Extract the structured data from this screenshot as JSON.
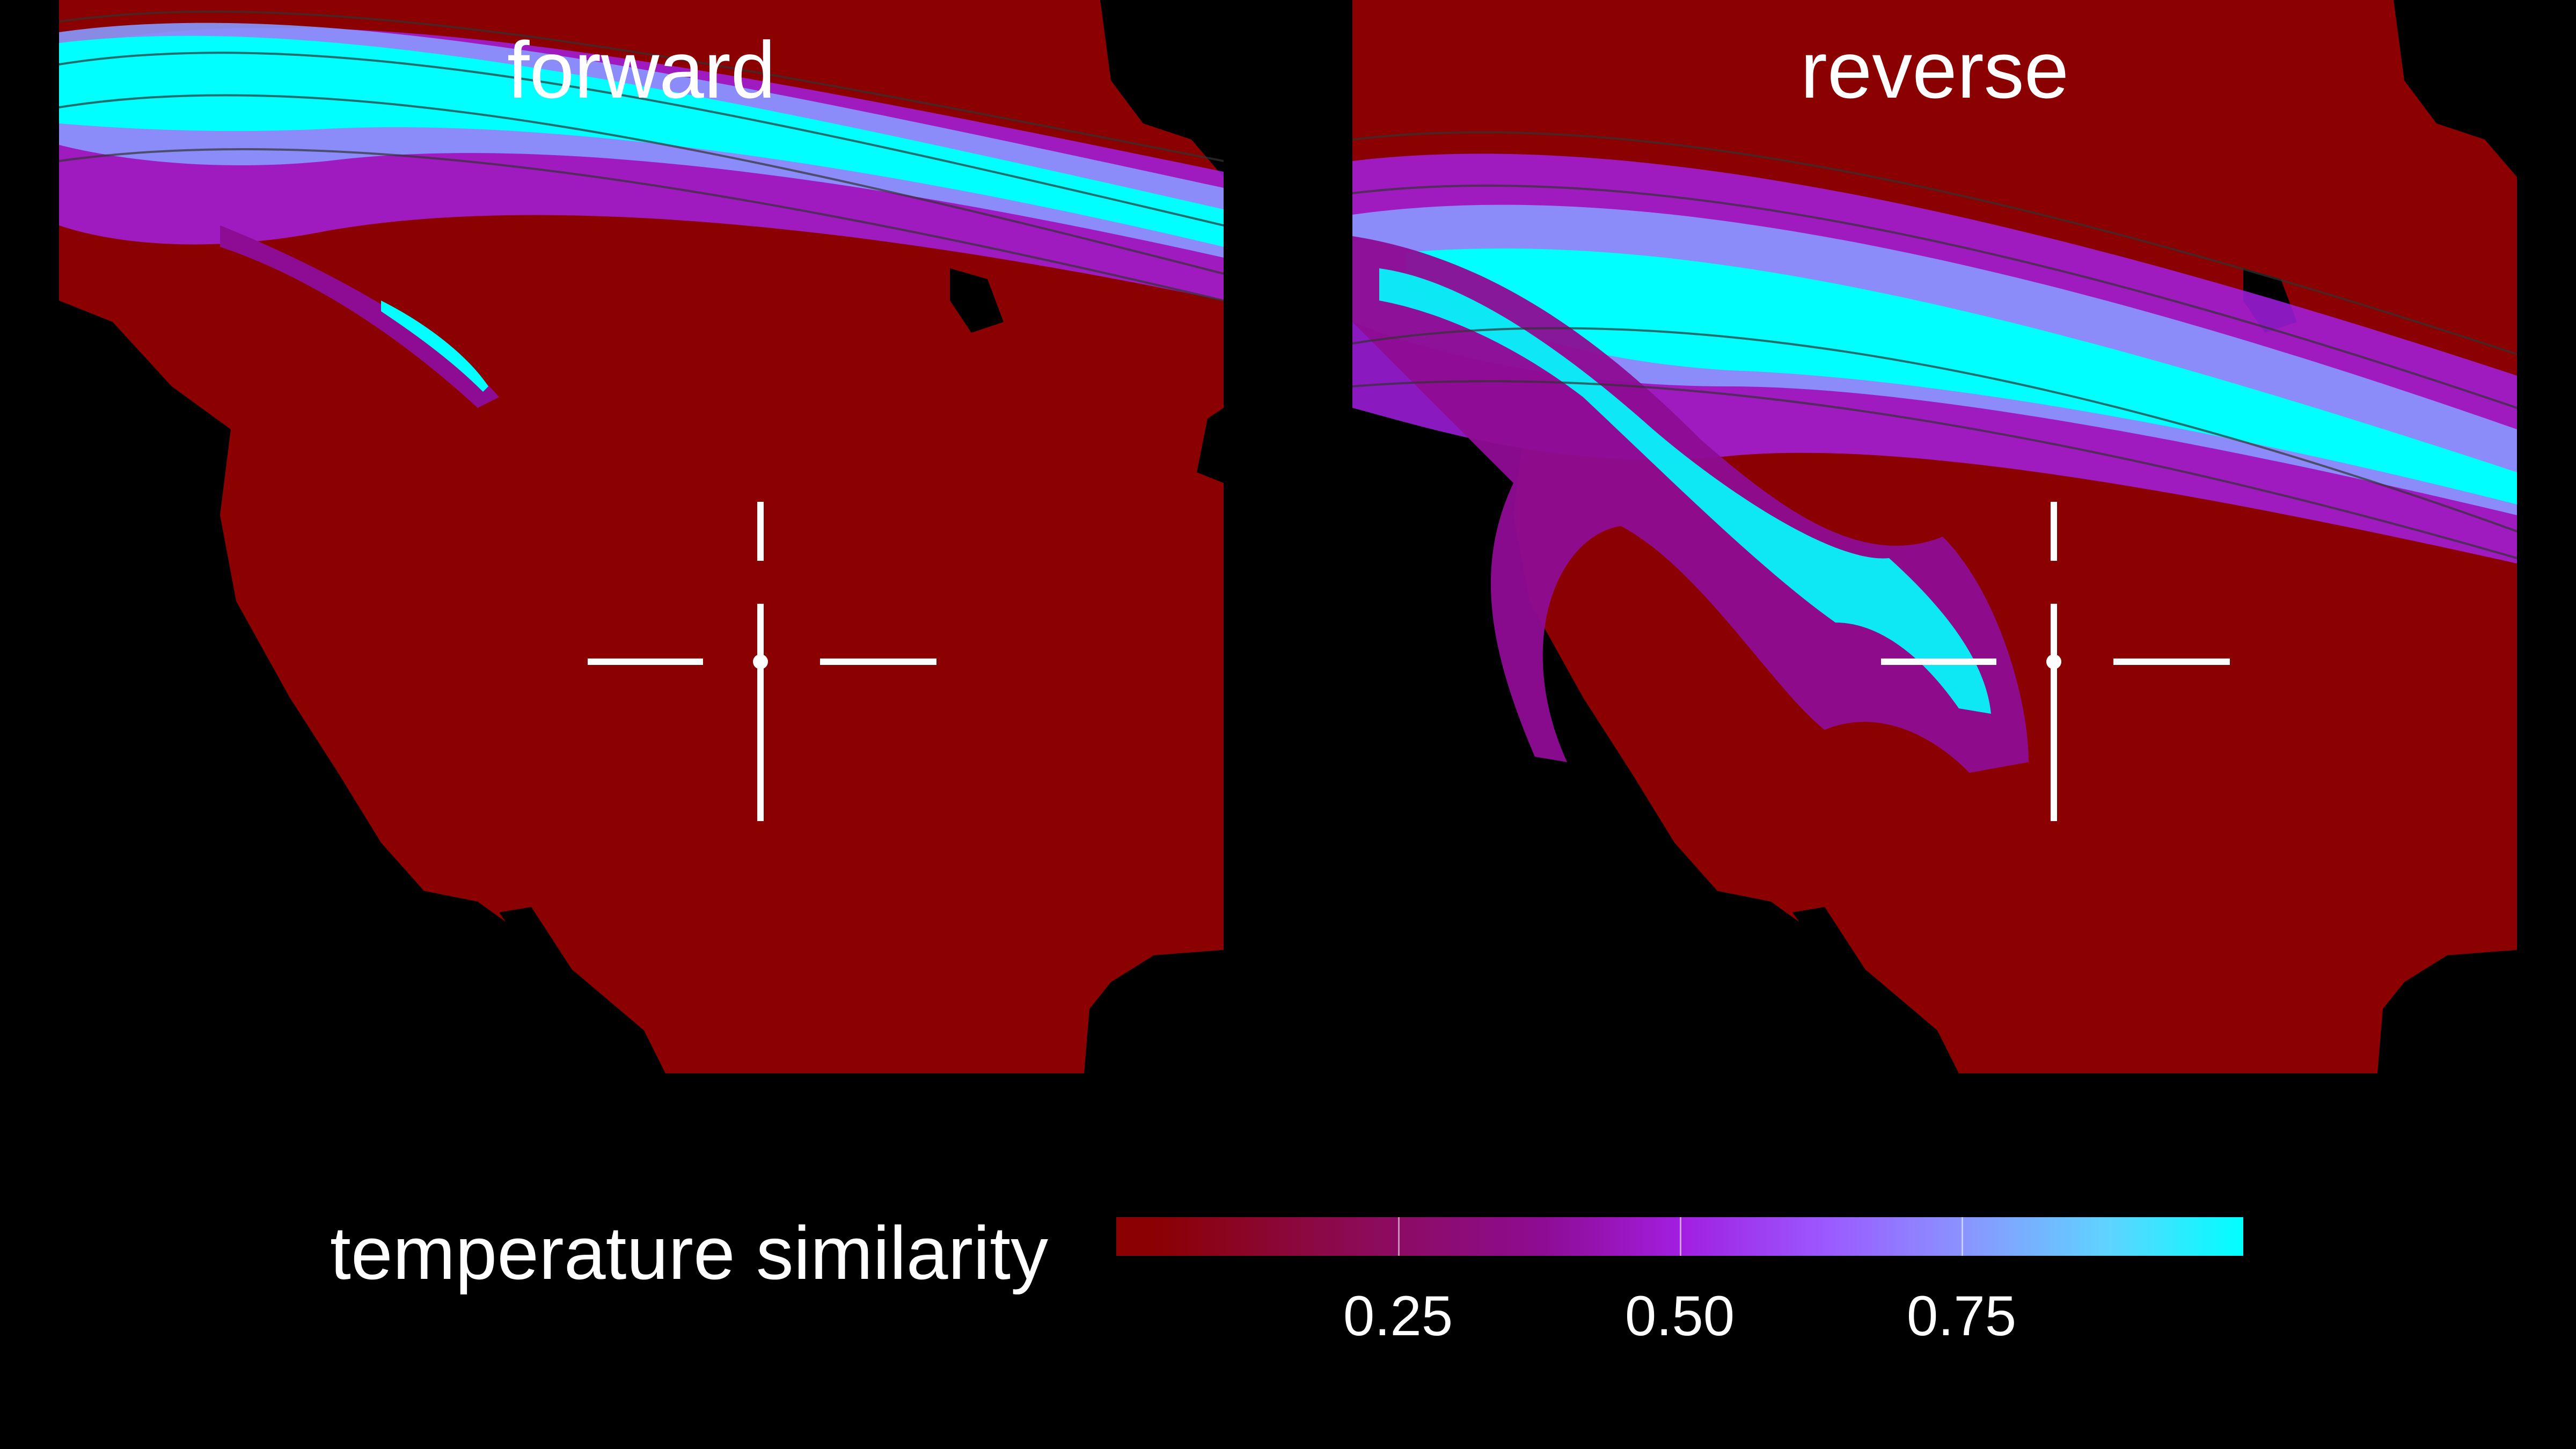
{
  "panels": {
    "forward": {
      "title": "forward"
    },
    "reverse": {
      "title": "reverse"
    }
  },
  "legend": {
    "label": "temperature similarity",
    "ticks": [
      "0.25",
      "0.50",
      "0.75"
    ],
    "tick_values": [
      0.25,
      0.5,
      0.75
    ],
    "range": [
      0,
      1
    ],
    "colors": {
      "low": "#8b0000",
      "mid": "#a21ee1",
      "high": "#00ffff",
      "ocean": "#000000"
    }
  }
}
